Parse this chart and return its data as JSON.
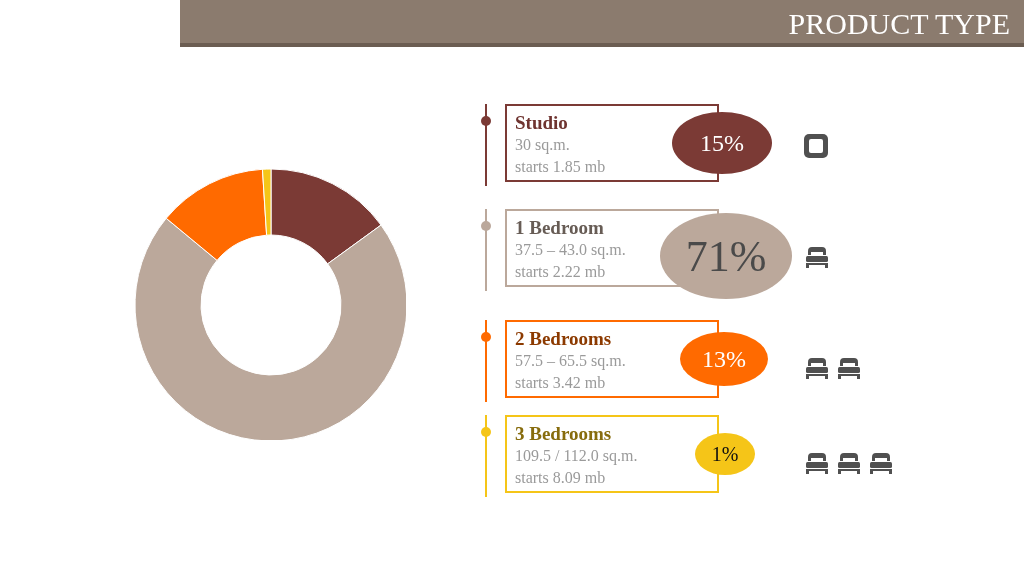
{
  "chart_data": {
    "type": "donut",
    "title": "PRODUCT TYPE",
    "categories": [
      "Studio",
      "1 Bedroom",
      "2 Bedrooms",
      "3 Bedrooms"
    ],
    "values": [
      15,
      71,
      13,
      1
    ],
    "colors": [
      "#7b3a35",
      "#bba89b",
      "#ff6a00",
      "#f5c518"
    ],
    "legend": "right",
    "annotations": [
      "30 sq.m.",
      "starts 1.85 mb",
      "15%",
      "37.5 – 43.0 sq.m.",
      "starts 2.22 mb",
      "71%",
      "57.5 – 65.5 sq.m.",
      "starts 3.42 mb",
      "13%",
      "109.5 / 112.0 sq.m.",
      "starts 8.09 mb",
      "1%"
    ]
  }
}
